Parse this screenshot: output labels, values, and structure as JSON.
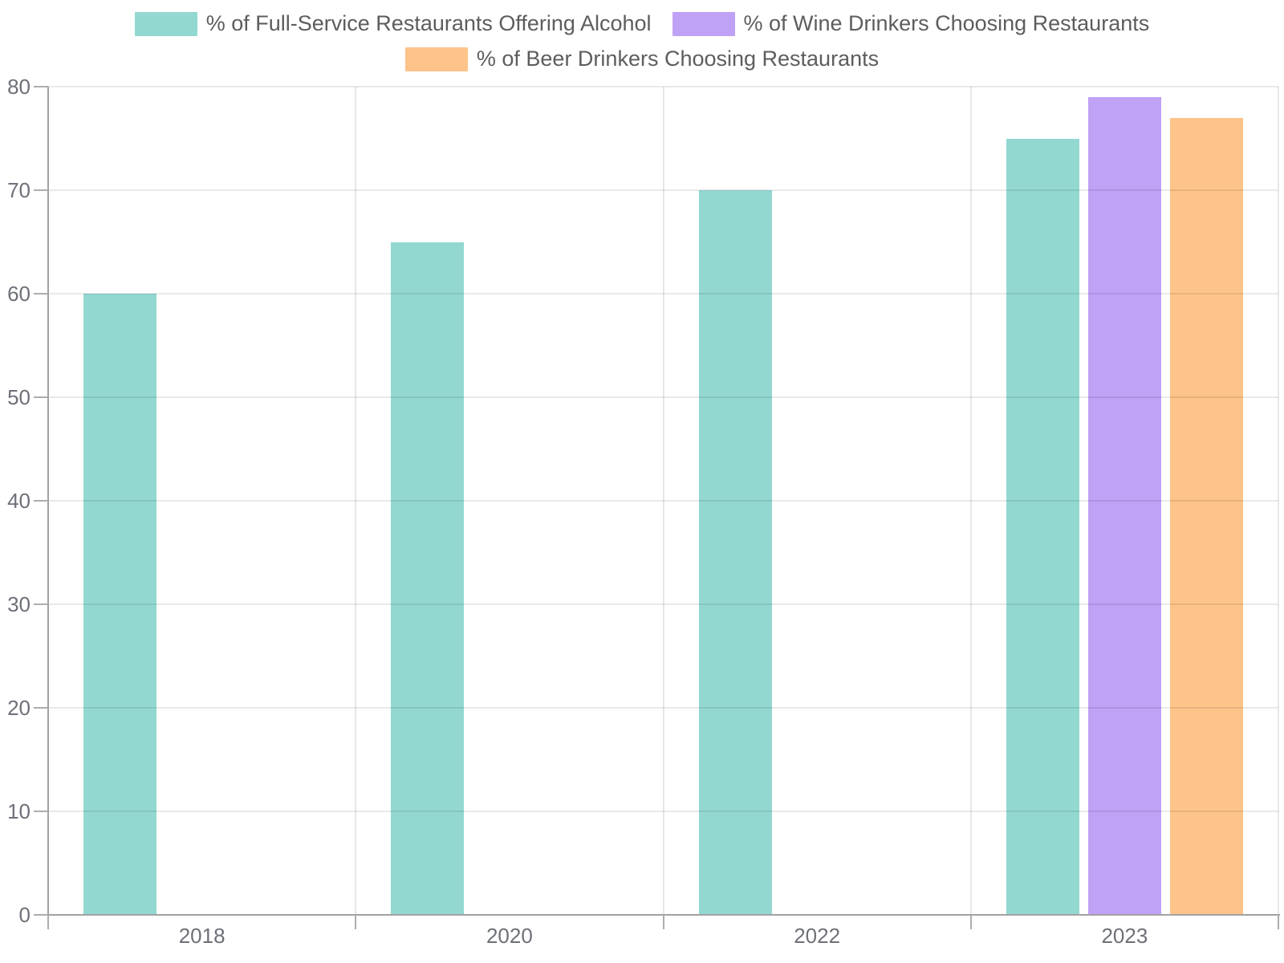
{
  "chart_data": {
    "type": "bar",
    "title": "",
    "xlabel": "",
    "ylabel": "",
    "categories": [
      "2018",
      "2020",
      "2022",
      "2023"
    ],
    "series": [
      {
        "name": "% of Full-Service Restaurants Offering Alcohol",
        "color": "#92d8d1",
        "values": [
          60,
          65,
          70,
          75
        ]
      },
      {
        "name": "% of Wine Drinkers Choosing Restaurants",
        "color": "#bfa1f6",
        "values": [
          null,
          null,
          null,
          79
        ]
      },
      {
        "name": "% of Beer Drinkers Choosing Restaurants",
        "color": "#fec389",
        "values": [
          null,
          null,
          null,
          77
        ]
      }
    ],
    "ylim": [
      0,
      80
    ],
    "yticks": [
      0,
      10,
      20,
      30,
      40,
      50,
      60,
      70,
      80
    ],
    "grid": true,
    "legend_position": "top"
  },
  "styles": {
    "background": "#ffffff",
    "axis_color": "#a2a2a2",
    "tick_color": "#adadad",
    "grid_color": "#e7e7e7",
    "axis_label_color": "#6e7079",
    "legend_text_color": "#5d5d5d"
  }
}
